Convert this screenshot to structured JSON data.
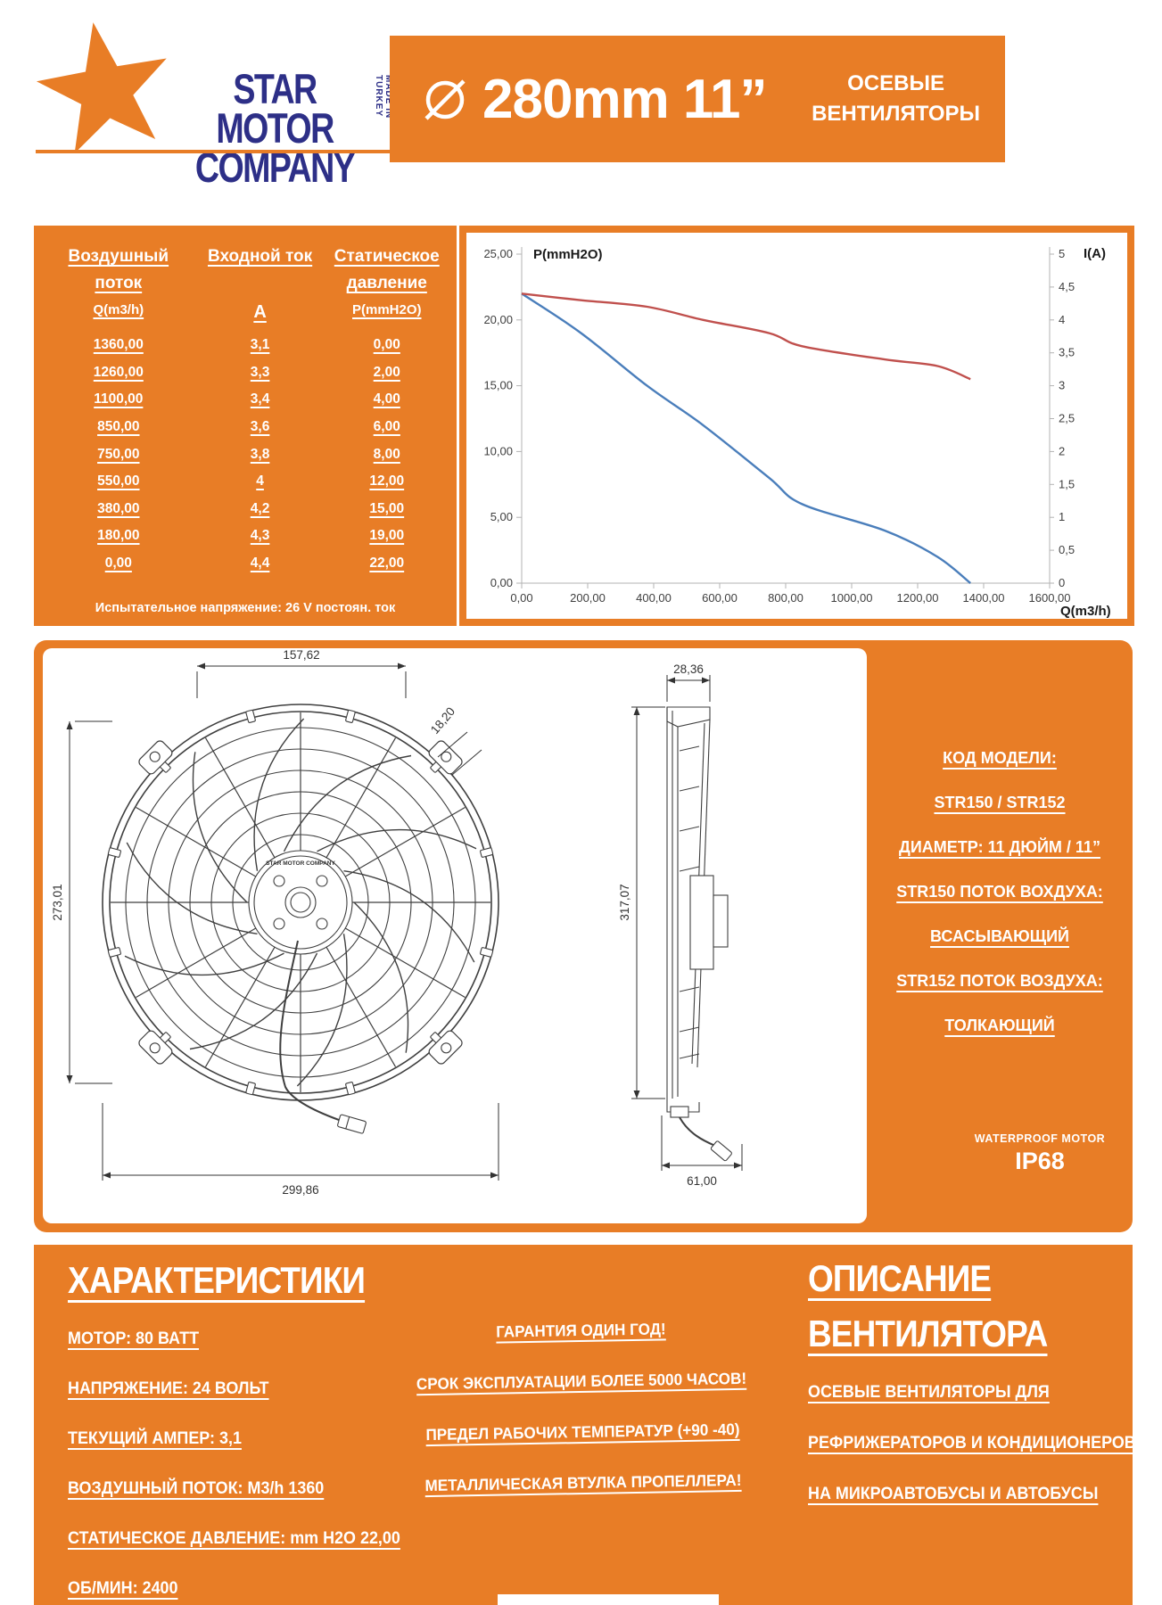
{
  "colors": {
    "accent_orange": "#E87D26",
    "brand_navy": "#2D2F87",
    "chart_blue": "#4A7EBB",
    "chart_red": "#C0504D"
  },
  "header": {
    "brand_line1": "STAR MOTOR",
    "brand_line2": "COMPANY",
    "made_in": "MADE IN TURKEY",
    "diameter_symbol": "⌀",
    "diameter_text": "280mm 11”",
    "category_line1": "ОСЕВЫЕ",
    "category_line2": "ВЕНТИЛЯТОРЫ"
  },
  "spec_table": {
    "columns": [
      {
        "lines": [
          "Воздушный",
          "поток"
        ],
        "unit": "Q(m3/h)"
      },
      {
        "lines": [
          "Входной ток",
          ""
        ],
        "unit": "A"
      },
      {
        "lines": [
          "Статическое",
          "давление"
        ],
        "unit": "P(mmH2O)"
      }
    ],
    "rows": [
      [
        "1360,00",
        "3,1",
        "0,00"
      ],
      [
        "1260,00",
        "3,3",
        "2,00"
      ],
      [
        "1100,00",
        "3,4",
        "4,00"
      ],
      [
        "850,00",
        "3,6",
        "6,00"
      ],
      [
        "750,00",
        "3,8",
        "8,00"
      ],
      [
        "550,00",
        "4",
        "12,00"
      ],
      [
        "380,00",
        "4,2",
        "15,00"
      ],
      [
        "180,00",
        "4,3",
        "19,00"
      ],
      [
        "0,00",
        "4,4",
        "22,00"
      ]
    ],
    "note": "Испытательное напряжение: 26 V постоян. ток"
  },
  "chart_data": {
    "type": "line",
    "title": "",
    "xlabel": "Q(m3/h)",
    "ylabel_left": "P(mmH2O)",
    "ylabel_right": "I(A)",
    "xlim": [
      0,
      1600
    ],
    "ylim_left": [
      0,
      25
    ],
    "ylim_right": [
      0,
      5
    ],
    "x_ticks": [
      "0,00",
      "200,00",
      "400,00",
      "600,00",
      "800,00",
      "1000,00",
      "1200,00",
      "1400,00",
      "1600,00"
    ],
    "y_ticks_left": [
      "0,00",
      "5,00",
      "10,00",
      "15,00",
      "20,00",
      "25,00"
    ],
    "y_ticks_right": [
      "0",
      "0,5",
      "1",
      "1,5",
      "2",
      "2,5",
      "3",
      "3,5",
      "4",
      "4,5",
      "5"
    ],
    "grid": false,
    "legend": "none",
    "series": [
      {
        "name": "Статическое давление P(mmH2O)",
        "axis": "left",
        "color": "#4A7EBB",
        "x": [
          0,
          180,
          380,
          550,
          750,
          850,
          1100,
          1260,
          1360
        ],
        "y": [
          22,
          19,
          15,
          12,
          8,
          6,
          4,
          2,
          0
        ]
      },
      {
        "name": "Входной ток I(A)",
        "axis": "right",
        "color": "#C0504D",
        "x": [
          0,
          180,
          380,
          550,
          750,
          850,
          1100,
          1260,
          1360
        ],
        "y": [
          4.4,
          4.3,
          4.2,
          4.0,
          3.8,
          3.6,
          3.4,
          3.3,
          3.1
        ]
      }
    ]
  },
  "drawing": {
    "front_dims": {
      "top": "157,62",
      "diag": "18,20",
      "left": "273,01",
      "bottom": "299,86"
    },
    "side_dims": {
      "top": "28,36",
      "left": "317,07",
      "bottom": "61,00"
    },
    "hub_label": "STAR MOTOR COMPANY",
    "info_lines": [
      "КОД МОДЕЛИ:",
      "STR150 / STR152",
      "ДИАМЕТР: 11 ДЮЙМ / 11”",
      "STR150 ПОТОК ВОХДУХА:",
      "ВСАСЫВАЮЩИЙ",
      "STR152 ПОТОК ВОЗДУХА:",
      "ТОЛКАЮЩИЙ"
    ],
    "waterproof_label": "WATERPROOF MOTOR",
    "ip_rating": "IP68"
  },
  "footer": {
    "left_title": "ХАРАКТЕРИСТИКИ",
    "left_items": [
      "МОТОР: 80 ВАТТ",
      "НАПРЯЖЕНИЕ: 24 ВОЛЬТ",
      "ТЕКУЩИЙ АМПЕР: 3,1",
      "ВОЗДУШНЫЙ ПОТОК: M3/h 1360",
      "СТАТИЧЕСКОЕ ДАВЛЕНИЕ: mm H2O  22,00",
      "ОБ/МИН: 2400"
    ],
    "middle_items": [
      "ГАРАНТИЯ ОДИН ГОД!",
      "СРОК ЭКСПЛУАТАЦИИ БОЛЕЕ 5000 ЧАСОВ!",
      "ПРЕДЕЛ РАБОЧИХ ТЕМПЕРАТУР (+90 -40)",
      "МЕТАЛЛИЧЕСКАЯ ВТУЛКА ПРОПЕЛЛЕРА!"
    ],
    "right_title_line1": "ОПИСАНИЕ",
    "right_title_line2": "ВЕНТИЛЯТОРА",
    "right_items": [
      "ОСЕВЫЕ ВЕНТИЛЯТОРЫ ДЛЯ",
      "РЕФРИЖЕРАТОРОВ И КОНДИЦИОНЕРОВ",
      "НА МИКРОАВТОБУСЫ И АВТОБУСЫ"
    ]
  }
}
